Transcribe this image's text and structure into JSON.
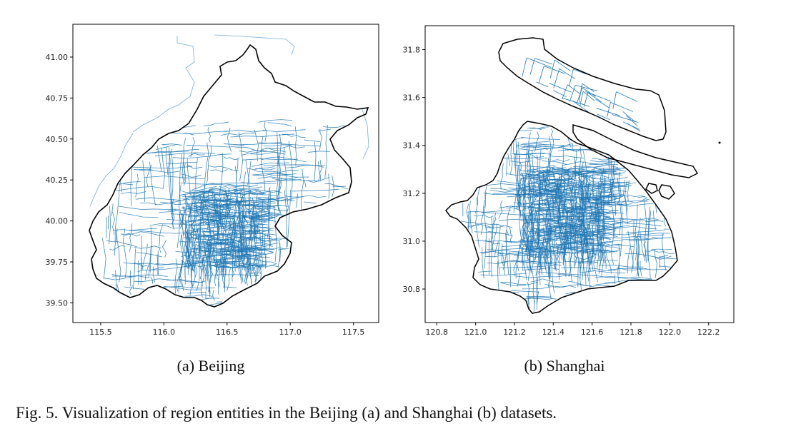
{
  "figure": {
    "caption": "Fig. 5.  Visualization of region entities in the Beijing (a) and Shanghai (b) datasets."
  },
  "chart_data": [
    {
      "type": "map",
      "subcaption": "(a)  Beijing",
      "xlim": [
        115.28,
        117.7
      ],
      "ylim": [
        39.38,
        41.2
      ],
      "xticks": [
        115.5,
        116.0,
        116.5,
        117.0,
        117.5
      ],
      "xtick_labels": [
        "115.5",
        "116.0",
        "116.5",
        "117.0",
        "117.5"
      ],
      "yticks": [
        39.5,
        39.75,
        40.0,
        40.25,
        40.5,
        40.75,
        41.0
      ],
      "ytick_labels": [
        "39.50",
        "39.75",
        "40.00",
        "40.25",
        "40.50",
        "40.75",
        "41.00"
      ],
      "grid": false,
      "colors": {
        "boundary": "#000000",
        "roads": "#1f77b4"
      }
    },
    {
      "type": "map",
      "subcaption": "(b)  Shanghai",
      "xlim": [
        120.74,
        122.33
      ],
      "ylim": [
        30.66,
        31.9
      ],
      "xticks": [
        120.8,
        121.0,
        121.2,
        121.4,
        121.6,
        121.8,
        122.0,
        122.2
      ],
      "xtick_labels": [
        "120.8",
        "121.0",
        "121.2",
        "121.4",
        "121.6",
        "121.8",
        "122.0",
        "122.2"
      ],
      "yticks": [
        30.8,
        31.0,
        31.2,
        31.4,
        31.6,
        31.8
      ],
      "ytick_labels": [
        "30.8",
        "31.0",
        "31.2",
        "31.4",
        "31.6",
        "31.8"
      ],
      "grid": false,
      "colors": {
        "boundary": "#000000",
        "roads": "#1f77b4"
      }
    }
  ]
}
